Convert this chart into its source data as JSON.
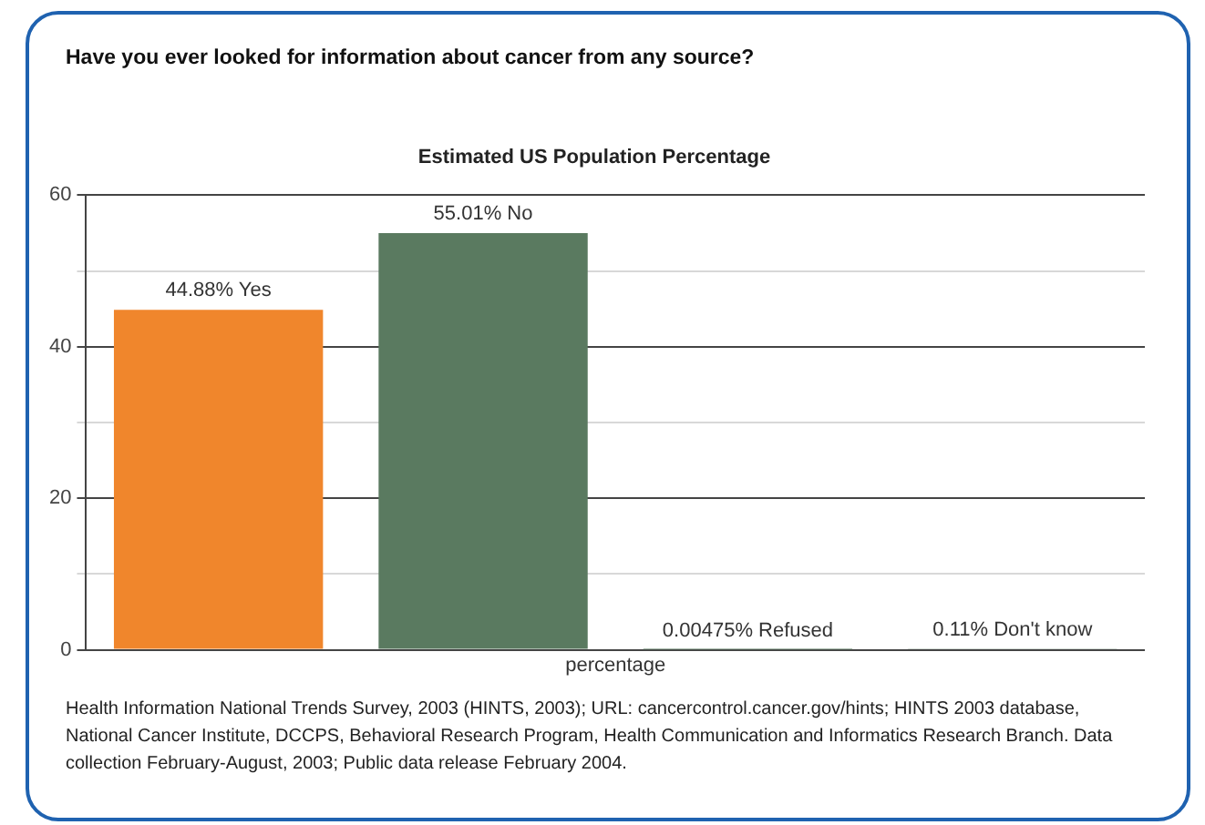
{
  "chart_data": {
    "type": "bar",
    "title": "Have you ever looked for information about cancer from any source?",
    "subtitle": "Estimated US Population Percentage",
    "xlabel": "percentage",
    "categories": [
      null,
      null,
      null,
      null
    ],
    "values": [
      44.88,
      55.01,
      0.00475,
      0.11
    ],
    "colors": [
      "#f0862c",
      "#5a7a60",
      "#5a7a60",
      "#5a7a60"
    ],
    "value_labels": [
      "44.88% Yes",
      "55.01% No",
      "0.00475% Refused",
      "0.11% Don't know"
    ],
    "ylim": [
      0,
      60
    ],
    "yticks": [
      0,
      {
        "value": 10,
        "label": null
      },
      20,
      {
        "value": 30,
        "label": null
      },
      40,
      {
        "value": 50,
        "label": null
      },
      60
    ],
    "grid": "y",
    "annotations": [
      "Health Information National Trends Survey, 2003 (HINTS, 2003); URL: cancercontrol.cancer.gov/hints; HINTS 2003 database, National Cancer Institute, DCCPS, Behavioral Research Program, Health Communication and Informatics Research Branch. Data collection February-August, 2003; Public data release February 2004."
    ]
  }
}
